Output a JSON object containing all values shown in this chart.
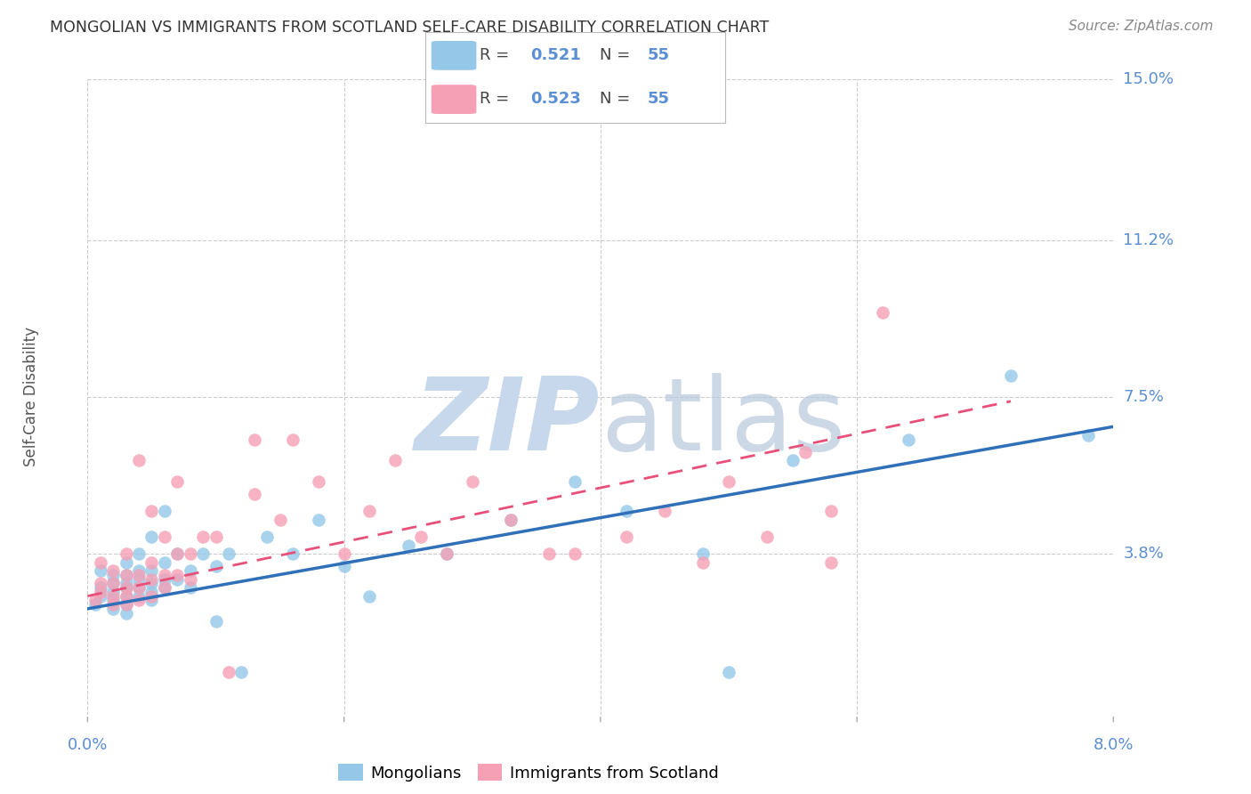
{
  "title": "MONGOLIAN VS IMMIGRANTS FROM SCOTLAND SELF-CARE DISABILITY CORRELATION CHART",
  "source": "Source: ZipAtlas.com",
  "ylabel": "Self-Care Disability",
  "xlim": [
    0.0,
    0.08
  ],
  "ylim": [
    0.0,
    0.15
  ],
  "yticks": [
    0.038,
    0.075,
    0.112,
    0.15
  ],
  "ytick_labels": [
    "3.8%",
    "7.5%",
    "11.2%",
    "15.0%"
  ],
  "xtick_vals": [
    0.0,
    0.02,
    0.04,
    0.06,
    0.08
  ],
  "xtick_show": [
    true,
    false,
    false,
    false,
    true
  ],
  "xtick_labels": [
    "0.0%",
    "",
    "",
    "",
    "8.0%"
  ],
  "mongolian_R": 0.521,
  "mongolian_N": 55,
  "scotland_R": 0.523,
  "scotland_N": 55,
  "mongolian_color": "#94C7E8",
  "scotland_color": "#F5A0B5",
  "mongolian_line_color": "#3070B8",
  "scotland_line_color": "#E8507A",
  "background_color": "#FFFFFF",
  "grid_color": "#CCCCCC",
  "watermark_color": "#C8D8EC",
  "mongolian_x": [
    0.0006,
    0.001,
    0.001,
    0.001,
    0.002,
    0.002,
    0.002,
    0.002,
    0.002,
    0.003,
    0.003,
    0.003,
    0.003,
    0.003,
    0.003,
    0.003,
    0.004,
    0.004,
    0.004,
    0.004,
    0.004,
    0.005,
    0.005,
    0.005,
    0.005,
    0.005,
    0.006,
    0.006,
    0.006,
    0.006,
    0.007,
    0.007,
    0.008,
    0.008,
    0.009,
    0.01,
    0.01,
    0.011,
    0.012,
    0.014,
    0.016,
    0.018,
    0.02,
    0.022,
    0.025,
    0.028,
    0.033,
    0.038,
    0.042,
    0.048,
    0.05,
    0.055,
    0.064,
    0.072,
    0.078
  ],
  "mongolian_y": [
    0.026,
    0.028,
    0.03,
    0.034,
    0.025,
    0.027,
    0.029,
    0.031,
    0.033,
    0.024,
    0.026,
    0.028,
    0.03,
    0.031,
    0.033,
    0.036,
    0.028,
    0.03,
    0.032,
    0.034,
    0.038,
    0.027,
    0.029,
    0.031,
    0.034,
    0.042,
    0.03,
    0.032,
    0.036,
    0.048,
    0.032,
    0.038,
    0.03,
    0.034,
    0.038,
    0.022,
    0.035,
    0.038,
    0.01,
    0.042,
    0.038,
    0.046,
    0.035,
    0.028,
    0.04,
    0.038,
    0.046,
    0.055,
    0.048,
    0.038,
    0.01,
    0.06,
    0.065,
    0.08,
    0.066
  ],
  "scotland_x": [
    0.0006,
    0.001,
    0.001,
    0.001,
    0.002,
    0.002,
    0.002,
    0.002,
    0.003,
    0.003,
    0.003,
    0.003,
    0.003,
    0.004,
    0.004,
    0.004,
    0.004,
    0.005,
    0.005,
    0.005,
    0.005,
    0.006,
    0.006,
    0.006,
    0.007,
    0.007,
    0.007,
    0.008,
    0.008,
    0.009,
    0.01,
    0.011,
    0.013,
    0.013,
    0.015,
    0.016,
    0.018,
    0.02,
    0.022,
    0.024,
    0.026,
    0.028,
    0.03,
    0.033,
    0.036,
    0.038,
    0.042,
    0.045,
    0.048,
    0.05,
    0.053,
    0.056,
    0.058,
    0.062,
    0.058
  ],
  "scotland_y": [
    0.027,
    0.029,
    0.031,
    0.036,
    0.026,
    0.028,
    0.031,
    0.034,
    0.026,
    0.028,
    0.03,
    0.033,
    0.038,
    0.027,
    0.03,
    0.033,
    0.06,
    0.028,
    0.032,
    0.036,
    0.048,
    0.03,
    0.033,
    0.042,
    0.033,
    0.038,
    0.055,
    0.032,
    0.038,
    0.042,
    0.042,
    0.01,
    0.052,
    0.065,
    0.046,
    0.065,
    0.055,
    0.038,
    0.048,
    0.06,
    0.042,
    0.038,
    0.055,
    0.046,
    0.038,
    0.038,
    0.042,
    0.048,
    0.036,
    0.055,
    0.042,
    0.062,
    0.048,
    0.095,
    0.036
  ],
  "mon_line_x0": 0.0,
  "mon_line_y0": 0.025,
  "mon_line_x1": 0.08,
  "mon_line_y1": 0.068,
  "sco_line_x0": 0.0,
  "sco_line_y0": 0.028,
  "sco_line_x1": 0.072,
  "sco_line_y1": 0.074
}
